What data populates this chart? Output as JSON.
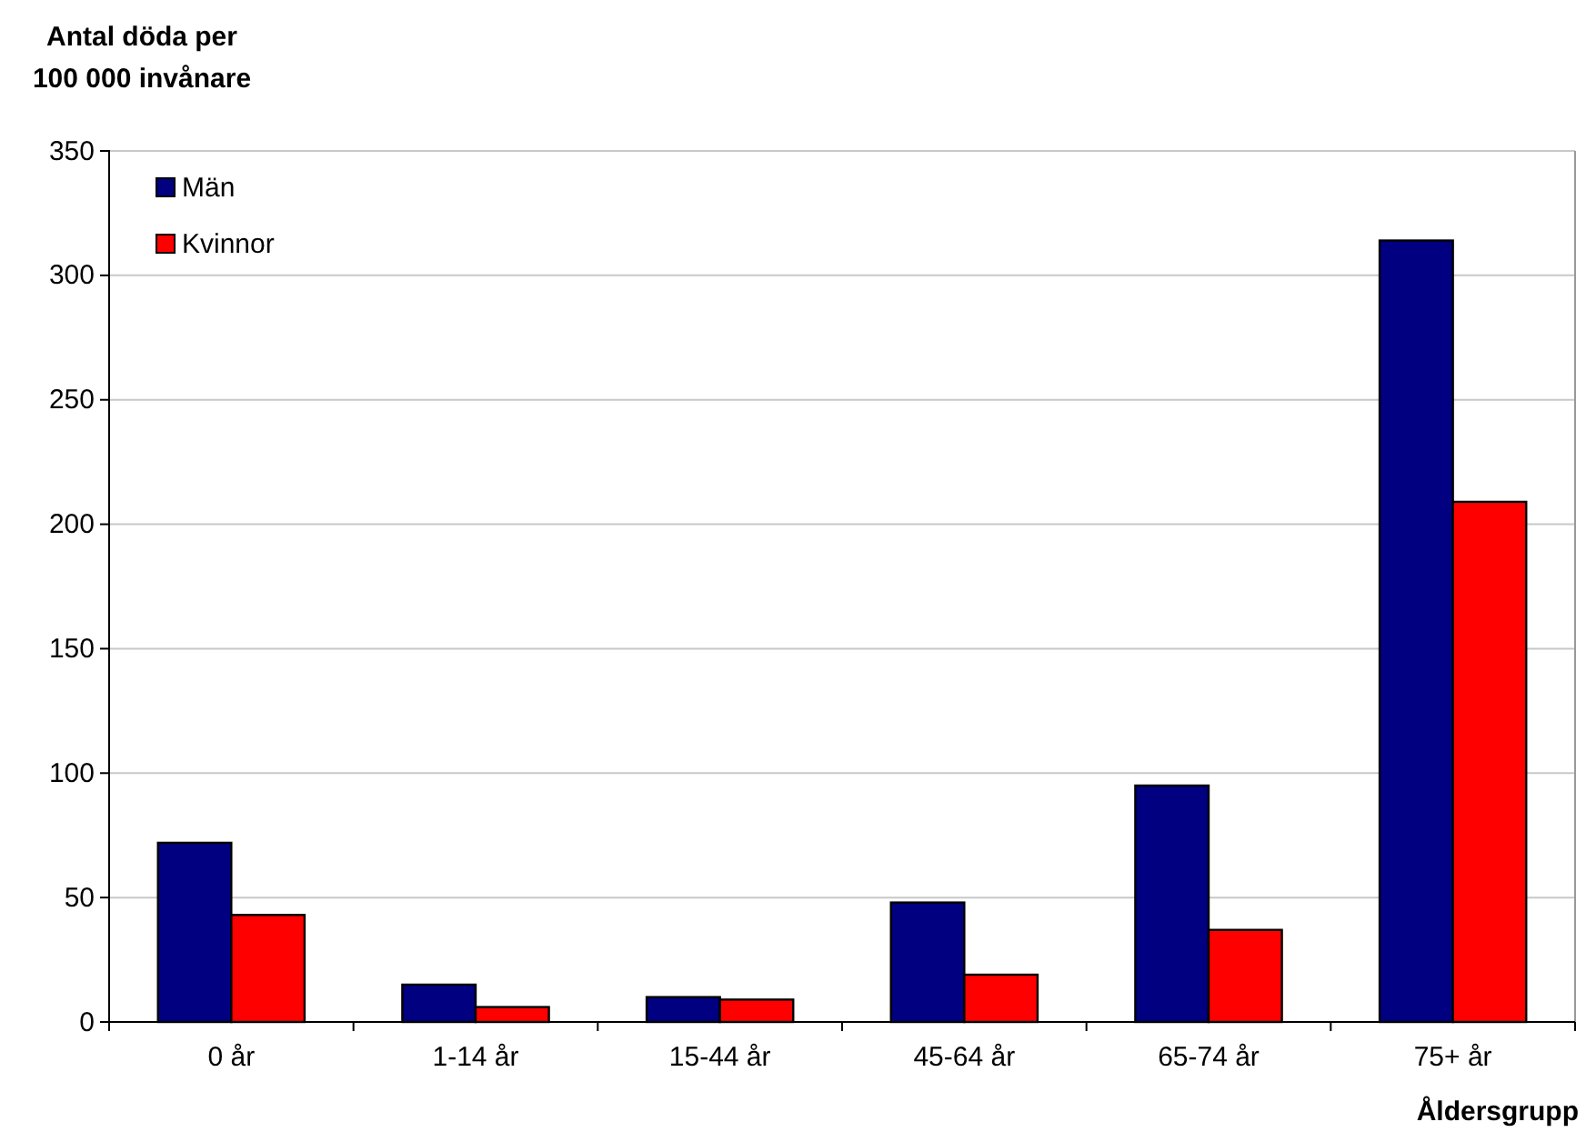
{
  "chart_data": {
    "type": "bar",
    "ylabel": "Antal döda per\n100 000 invånare",
    "xlabel": "Åldersgrupp",
    "categories": [
      "0 år",
      "1-14 år",
      "15-44 år",
      "45-64 år",
      "65-74 år",
      "75+ år"
    ],
    "series": [
      {
        "name": "Män",
        "color": "#000080",
        "values": [
          72,
          15,
          10,
          48,
          95,
          314
        ]
      },
      {
        "name": "Kvinnor",
        "color": "#ff0000",
        "values": [
          43,
          6,
          9,
          19,
          37,
          209
        ]
      }
    ],
    "ylim": [
      0,
      350
    ],
    "yticks": [
      0,
      50,
      100,
      150,
      200,
      250,
      300,
      350
    ],
    "grid": "y",
    "legend": "top left"
  }
}
